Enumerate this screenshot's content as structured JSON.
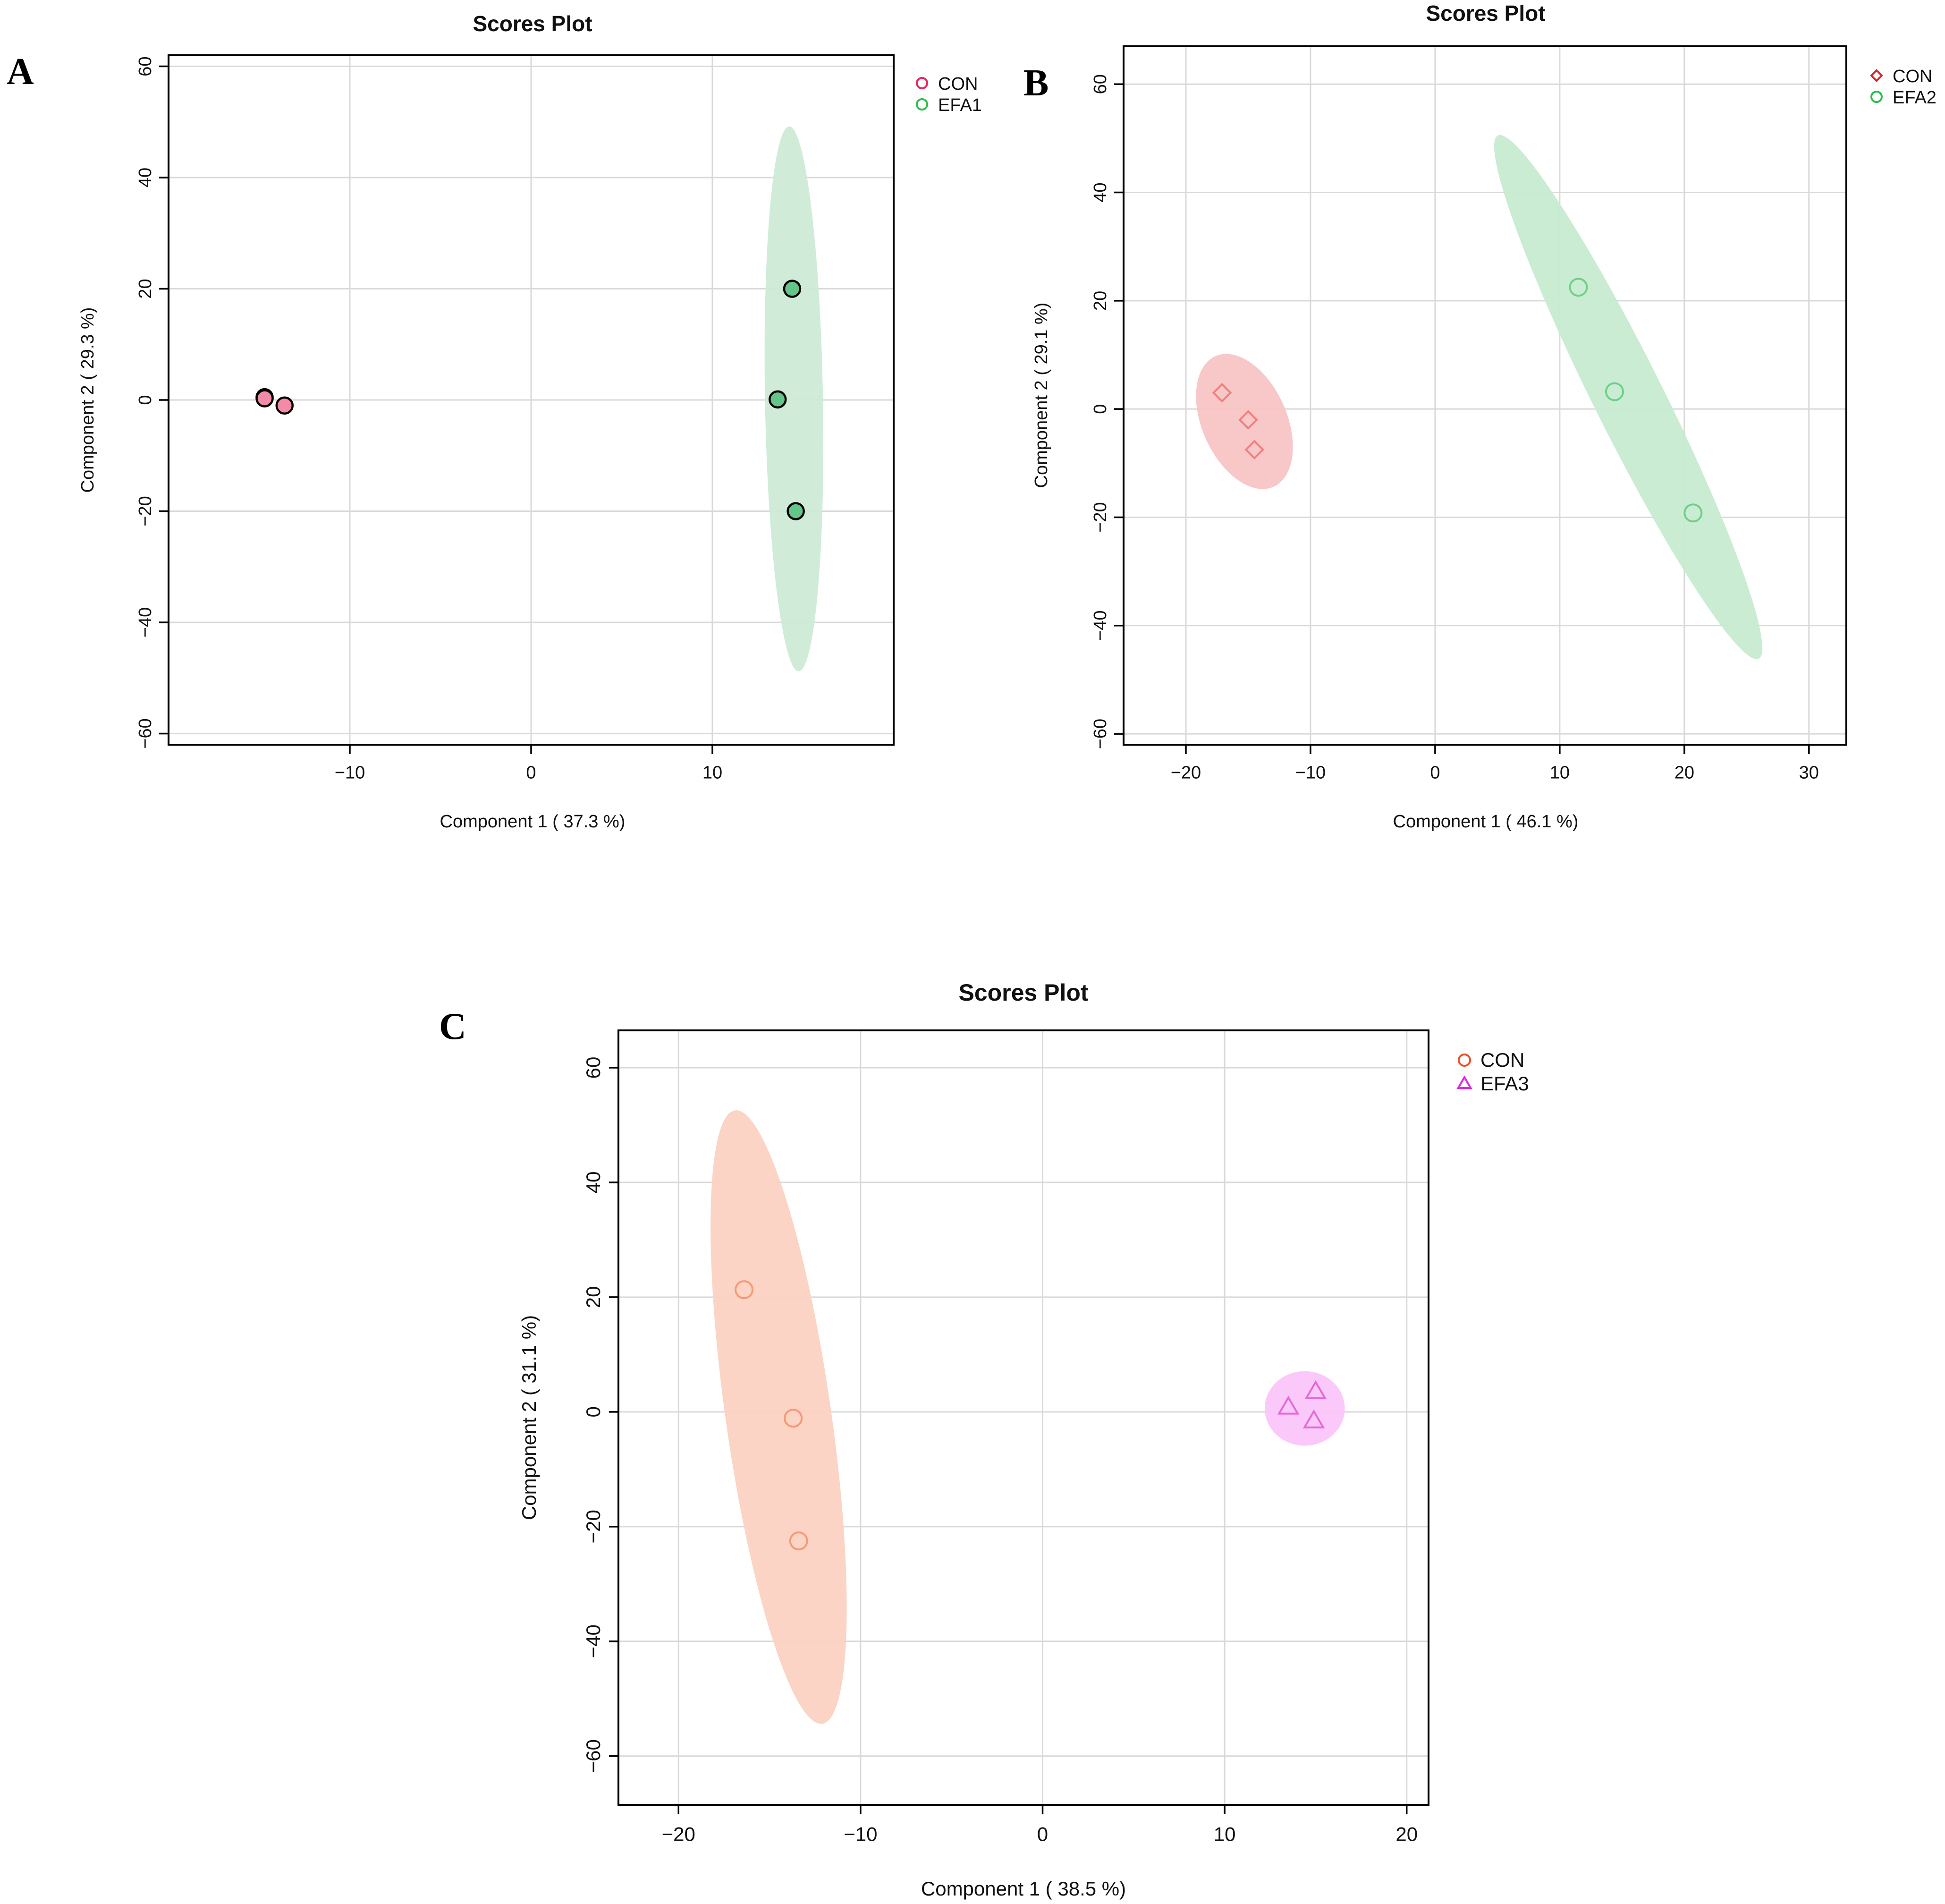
{
  "chart_data": [
    {
      "panel": "A",
      "type": "scatter",
      "title": "Scores Plot",
      "xlabel": "Component 1 ( 37.3 %)",
      "ylabel": "Component 2 ( 29.3 %)",
      "xlim": [
        -20,
        20
      ],
      "ylim": [
        -62,
        62
      ],
      "xticks": [
        -10,
        0,
        10
      ],
      "xtick_labels": [
        "−10",
        "0",
        "10"
      ],
      "yticks": [
        -60,
        -40,
        -20,
        0,
        20,
        40,
        60
      ],
      "ytick_labels": [
        "−60",
        "−40",
        "−20",
        "0",
        "20",
        "40",
        "60"
      ],
      "ytick_rotated": true,
      "legend": {
        "position": "top-right",
        "items": [
          {
            "label": "CON",
            "marker": "circle",
            "color": "#e8245a"
          },
          {
            "label": "EFA1",
            "marker": "circle",
            "color": "#2dbd4e"
          }
        ]
      },
      "series": [
        {
          "name": "CON",
          "marker": "circle",
          "fill": "#f38aa6",
          "stroke": "#000000",
          "ellipse_fill": "#f4a9bb",
          "points": [
            {
              "x": -14.7,
              "y": 0.5
            },
            {
              "x": -14.7,
              "y": 0.3
            },
            {
              "x": -13.6,
              "y": -1.0
            }
          ]
        },
        {
          "name": "EFA1",
          "marker": "circle",
          "fill": "#63c587",
          "stroke": "#000000",
          "ellipse": {
            "cx": 14.5,
            "cy": 0.2,
            "rx": 1.6,
            "ry": 49,
            "angle": -1
          },
          "ellipse_fill": "#cdebd7",
          "points": [
            {
              "x": 14.4,
              "y": 20.0
            },
            {
              "x": 13.6,
              "y": 0.1
            },
            {
              "x": 14.6,
              "y": -20.0
            }
          ]
        }
      ]
    },
    {
      "panel": "B",
      "type": "scatter",
      "title": "Scores Plot",
      "xlabel": "Component 1 ( 46.1 %)",
      "ylabel": "Component 2 ( 29.1 %)",
      "xlim": [
        -25,
        33
      ],
      "ylim": [
        -62,
        67
      ],
      "xticks": [
        -20,
        -10,
        0,
        10,
        20,
        30
      ],
      "xtick_labels": [
        "−20",
        "−10",
        "0",
        "10",
        "20",
        "30"
      ],
      "yticks": [
        -60,
        -40,
        -20,
        0,
        20,
        40,
        60
      ],
      "ytick_labels": [
        "−60",
        "−40",
        "−20",
        "0",
        "20",
        "40",
        "60"
      ],
      "ytick_rotated": true,
      "legend": {
        "position": "top-right",
        "items": [
          {
            "label": "CON",
            "marker": "diamond",
            "color": "#e6242a"
          },
          {
            "label": "EFA2",
            "marker": "circle",
            "color": "#2dbd4e"
          }
        ]
      },
      "series": [
        {
          "name": "CON",
          "marker": "diamond",
          "fill": "none",
          "stroke": "#ef7f7f",
          "ellipse": {
            "cx": -15.3,
            "cy": -2.3,
            "rx": 3.4,
            "ry": 13.2,
            "angle": -24
          },
          "ellipse_fill": "#f8c4c4",
          "points": [
            {
              "x": -17.1,
              "y": 3.0
            },
            {
              "x": -15.0,
              "y": -2.0
            },
            {
              "x": -14.5,
              "y": -7.5
            }
          ]
        },
        {
          "name": "EFA2",
          "marker": "circle",
          "fill": "none",
          "stroke": "#6fcf8a",
          "ellipse": {
            "cx": 15.5,
            "cy": 2.2,
            "rx": 2.8,
            "ry": 54,
            "angle": -26.5
          },
          "ellipse_fill": "#c7ebd0",
          "points": [
            {
              "x": 11.5,
              "y": 22.5
            },
            {
              "x": 14.4,
              "y": 3.2
            },
            {
              "x": 20.7,
              "y": -19.2
            }
          ]
        }
      ]
    },
    {
      "panel": "C",
      "type": "scatter",
      "title": "Scores Plot",
      "xlabel": "Component 1 ( 38.5 %)",
      "ylabel": "Component 2 ( 31.1 %)",
      "xlim": [
        -23.3,
        21.2
      ],
      "ylim": [
        -68.5,
        66.5
      ],
      "xticks": [
        -20,
        -10,
        0,
        10,
        20
      ],
      "xtick_labels": [
        "−20",
        "−10",
        "0",
        "10",
        "20"
      ],
      "yticks": [
        -60,
        -40,
        -20,
        0,
        20,
        40,
        60
      ],
      "ytick_labels": [
        "−60",
        "−40",
        "−20",
        "0",
        "20",
        "40",
        "60"
      ],
      "ytick_rotated": true,
      "legend": {
        "position": "top-right",
        "items": [
          {
            "label": "CON",
            "marker": "circle",
            "color": "#f04e23"
          },
          {
            "label": "EFA3",
            "marker": "triangle",
            "color": "#e227e6"
          }
        ]
      },
      "series": [
        {
          "name": "CON",
          "marker": "circle",
          "fill": "none",
          "stroke": "#f49a76",
          "ellipse": {
            "cx": -14.5,
            "cy": -0.9,
            "rx": 2.9,
            "ry": 54,
            "angle": -8.1
          },
          "ellipse_fill": "#fbd2c2",
          "points": [
            {
              "x": -16.4,
              "y": 21.3
            },
            {
              "x": -13.7,
              "y": -1.1
            },
            {
              "x": -13.4,
              "y": -22.5
            }
          ]
        },
        {
          "name": "EFA3",
          "marker": "triangle",
          "fill": "none",
          "stroke": "#e46ad6",
          "ellipse": {
            "cx": 14.4,
            "cy": 0.6,
            "rx": 2.2,
            "ry": 6.5,
            "angle": 0
          },
          "ellipse_fill": "#fac6fa",
          "points": [
            {
              "x": 13.5,
              "y": 0.8
            },
            {
              "x": 15.0,
              "y": 3.5
            },
            {
              "x": 14.9,
              "y": -1.6
            }
          ]
        }
      ]
    }
  ]
}
